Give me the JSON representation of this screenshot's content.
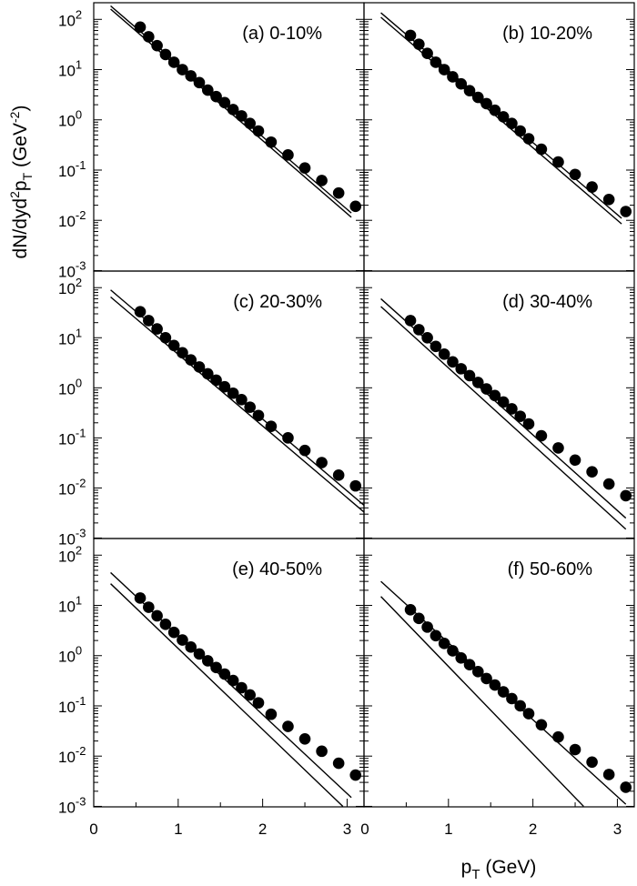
{
  "chart_data": {
    "type": "scatter",
    "layout": "3x2 panel grid, shared axes",
    "xlabel": "pT (GeV)",
    "ylabel": "dN/dyd2pT (GeV-2)",
    "xlim": [
      0,
      3.2
    ],
    "ylim": [
      0.001,
      200
    ],
    "y_log_scale": true,
    "x_ticks_left_column": [
      "0",
      "1",
      "2",
      "3"
    ],
    "x_ticks_right_column": [
      "0",
      "1",
      "2",
      "3"
    ],
    "y_tick_labels": [
      {
        "v": 100,
        "base": "10",
        "exp": "2"
      },
      {
        "v": 10,
        "base": "10",
        "exp": "1"
      },
      {
        "v": 1,
        "base": "10",
        "exp": "0"
      },
      {
        "v": 0.1,
        "base": "10",
        "exp": "-1"
      },
      {
        "v": 0.01,
        "base": "10",
        "exp": "-2"
      },
      {
        "v": 0.001,
        "base": "10",
        "exp": "-3"
      }
    ],
    "x": [
      0.55,
      0.65,
      0.75,
      0.85,
      0.95,
      1.05,
      1.15,
      1.25,
      1.35,
      1.45,
      1.55,
      1.65,
      1.75,
      1.85,
      1.95,
      2.1,
      2.3,
      2.5,
      2.7,
      2.9,
      3.1
    ],
    "panels": [
      {
        "label": "(a) 0-10%",
        "points": [
          70,
          45,
          30,
          20,
          14,
          10,
          7.5,
          5.5,
          3.9,
          2.9,
          2.2,
          1.6,
          1.2,
          0.85,
          0.6,
          0.36,
          0.2,
          0.11,
          0.062,
          0.035,
          0.019
        ],
        "curves": [
          {
            "x": [
              0.2,
              3.05
            ],
            "y": [
              185,
              0.014
            ]
          },
          {
            "x": [
              0.2,
              3.05
            ],
            "y": [
              160,
              0.0115
            ]
          }
        ]
      },
      {
        "label": "(b) 10-20%",
        "points": [
          48,
          32,
          21,
          14,
          10,
          7.2,
          5.2,
          3.8,
          2.8,
          2.1,
          1.55,
          1.15,
          0.85,
          0.6,
          0.42,
          0.26,
          0.145,
          0.082,
          0.046,
          0.026,
          0.015
        ],
        "curves": [
          {
            "x": [
              0.2,
              3.05
            ],
            "y": [
              135,
              0.011
            ]
          },
          {
            "x": [
              0.2,
              3.05
            ],
            "y": [
              110,
              0.0085
            ]
          }
        ]
      },
      {
        "label": "(c) 20-30%",
        "points": [
          33,
          22,
          15,
          10,
          7,
          5,
          3.6,
          2.6,
          1.9,
          1.42,
          1.05,
          0.78,
          0.58,
          0.41,
          0.28,
          0.17,
          0.1,
          0.056,
          0.032,
          0.018,
          0.011
        ],
        "curves": [
          {
            "x": [
              0.2,
              3.2
            ],
            "y": [
              90,
              0.0045
            ]
          },
          {
            "x": [
              0.2,
              3.2
            ],
            "y": [
              65,
              0.0033
            ]
          }
        ]
      },
      {
        "label": "(d) 30-40%",
        "points": [
          22,
          14.5,
          10,
          6.7,
          4.7,
          3.3,
          2.4,
          1.75,
          1.28,
          0.95,
          0.7,
          0.52,
          0.38,
          0.27,
          0.19,
          0.11,
          0.063,
          0.036,
          0.021,
          0.012,
          0.007
        ],
        "curves": [
          {
            "x": [
              0.2,
              3.1
            ],
            "y": [
              60,
              0.0025
            ]
          },
          {
            "x": [
              0.2,
              3.1
            ],
            "y": [
              42,
              0.0015
            ]
          }
        ]
      },
      {
        "label": "(e) 40-50%",
        "points": [
          14,
          9.2,
          6.2,
          4.2,
          2.9,
          2.05,
          1.48,
          1.08,
          0.79,
          0.58,
          0.43,
          0.32,
          0.23,
          0.165,
          0.115,
          0.068,
          0.039,
          0.022,
          0.0125,
          0.0072,
          0.0042
        ],
        "curves": [
          {
            "x": [
              0.2,
              3.05
            ],
            "y": [
              45,
              0.0015
            ]
          },
          {
            "x": [
              0.2,
              2.95
            ],
            "y": [
              27,
              0.001
            ]
          }
        ]
      },
      {
        "label": "(f) 50-60%",
        "points": [
          8.2,
          5.5,
          3.7,
          2.5,
          1.75,
          1.25,
          0.9,
          0.66,
          0.48,
          0.35,
          0.26,
          0.19,
          0.14,
          0.1,
          0.07,
          0.042,
          0.024,
          0.0135,
          0.0076,
          0.0043,
          0.0024
        ],
        "curves": [
          {
            "x": [
              0.2,
              3.1
            ],
            "y": [
              30,
              0.0011
            ]
          },
          {
            "x": [
              0.2,
              2.6
            ],
            "y": [
              15,
              0.001
            ]
          }
        ]
      }
    ]
  }
}
